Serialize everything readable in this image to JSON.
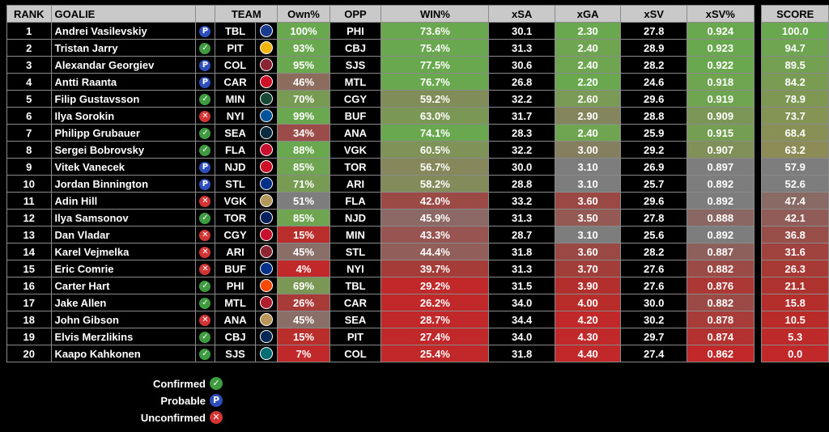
{
  "headers": {
    "rank": "RANK",
    "goalie": "GOALIE",
    "team": "TEAM",
    "own": "Own%",
    "opp": "OPP",
    "win": "WIN%",
    "xsa": "xSA",
    "xga": "xGA",
    "xsv": "xSV",
    "xsvpct": "xSV%",
    "score": "SCORE"
  },
  "status_glyphs": {
    "confirmed": "✓",
    "probable": "P",
    "unconfirmed": "✕"
  },
  "rows": [
    {
      "rank": "1",
      "goalie": "Andrei Vasilevskiy",
      "status": "probable",
      "team": "TBL",
      "logo_color": "#1a3c8f",
      "own": "100%",
      "own_color": "#6aa84f",
      "opp": "PHI",
      "win": "73.6%",
      "win_color": "#6aa84f",
      "xsa": "30.1",
      "xga": "2.30",
      "xga_color": "#6aa84f",
      "xsv": "27.8",
      "xsvpct": "0.924",
      "xsvpct_color": "#6aa84f",
      "score": "100.0",
      "score_color": "#6aa84f"
    },
    {
      "rank": "2",
      "goalie": "Tristan Jarry",
      "status": "confirmed",
      "team": "PIT",
      "logo_color": "#f2b50f",
      "own": "93%",
      "own_color": "#6aa84f",
      "opp": "CBJ",
      "win": "75.4%",
      "win_color": "#6aa84f",
      "xsa": "31.3",
      "xga": "2.40",
      "xga_color": "#6fa450",
      "xsv": "28.9",
      "xsvpct": "0.923",
      "xsvpct_color": "#6aa84f",
      "score": "94.7",
      "score_color": "#6fa450"
    },
    {
      "rank": "3",
      "goalie": "Alexandar Georgiev",
      "status": "probable",
      "team": "COL",
      "logo_color": "#8a2432",
      "own": "95%",
      "own_color": "#6aa84f",
      "opp": "SJS",
      "win": "77.5%",
      "win_color": "#6aa84f",
      "xsa": "30.6",
      "xga": "2.40",
      "xga_color": "#6fa450",
      "xsv": "28.2",
      "xsvpct": "0.922",
      "xsvpct_color": "#6aa84f",
      "score": "89.5",
      "score_color": "#74a051"
    },
    {
      "rank": "4",
      "goalie": "Antti Raanta",
      "status": "probable",
      "team": "CAR",
      "logo_color": "#ce1126",
      "own": "46%",
      "own_color": "#8c6c5c",
      "opp": "MTL",
      "win": "76.7%",
      "win_color": "#6aa84f",
      "xsa": "26.8",
      "xga": "2.20",
      "xga_color": "#6aa84f",
      "xsv": "24.6",
      "xsvpct": "0.918",
      "xsvpct_color": "#6fa450",
      "score": "84.2",
      "score_color": "#799c52"
    },
    {
      "rank": "5",
      "goalie": "Filip Gustavsson",
      "status": "confirmed",
      "team": "MIN",
      "logo_color": "#154734",
      "own": "70%",
      "own_color": "#779b53",
      "opp": "CGY",
      "win": "59.2%",
      "win_color": "#818d58",
      "xsa": "32.2",
      "xga": "2.60",
      "xga_color": "#799b55",
      "xsv": "29.6",
      "xsvpct": "0.919",
      "xsvpct_color": "#6fa450",
      "score": "78.9",
      "score_color": "#7e9854"
    },
    {
      "rank": "6",
      "goalie": "Ilya Sorokin",
      "status": "unconfirmed",
      "team": "NYI",
      "logo_color": "#00539b",
      "own": "99%",
      "own_color": "#6aa84f",
      "opp": "BUF",
      "win": "63.0%",
      "win_color": "#7b9755",
      "xsa": "31.7",
      "xga": "2.90",
      "xga_color": "#84855c",
      "xsv": "28.8",
      "xsvpct": "0.909",
      "xsvpct_color": "#7c9657",
      "score": "73.7",
      "score_color": "#839455"
    },
    {
      "rank": "7",
      "goalie": "Philipp Grubauer",
      "status": "confirmed",
      "team": "SEA",
      "logo_color": "#0b2a3d",
      "own": "34%",
      "own_color": "#9c4c48",
      "opp": "ANA",
      "win": "74.1%",
      "win_color": "#6aa84f",
      "xsa": "28.3",
      "xga": "2.40",
      "xga_color": "#6fa450",
      "xsv": "25.9",
      "xsvpct": "0.915",
      "xsvpct_color": "#749e52",
      "score": "68.4",
      "score_color": "#889056"
    },
    {
      "rank": "8",
      "goalie": "Sergei Bobrovsky",
      "status": "confirmed",
      "team": "FLA",
      "logo_color": "#c8102e",
      "own": "88%",
      "own_color": "#6aa84f",
      "opp": "VGK",
      "win": "60.5%",
      "win_color": "#7f9257",
      "xsa": "32.2",
      "xga": "3.00",
      "xga_color": "#857e5f",
      "xsv": "29.2",
      "xsvpct": "0.907",
      "xsvpct_color": "#818f59",
      "score": "63.2",
      "score_color": "#8d8c57"
    },
    {
      "rank": "9",
      "goalie": "Vitek Vanecek",
      "status": "probable",
      "team": "NJD",
      "logo_color": "#ce1126",
      "own": "85%",
      "own_color": "#6fa450",
      "opp": "TOR",
      "win": "56.7%",
      "win_color": "#86875b",
      "xsa": "30.0",
      "xga": "3.10",
      "xga_color": "#7d7d7d",
      "xsv": "26.9",
      "xsvpct": "0.897",
      "xsvpct_color": "#7d7d7d",
      "score": "57.9",
      "score_color": "#7d7d7d"
    },
    {
      "rank": "10",
      "goalie": "Jordan Binnington",
      "status": "probable",
      "team": "STL",
      "logo_color": "#002f87",
      "own": "71%",
      "own_color": "#779b53",
      "opp": "ARI",
      "win": "58.2%",
      "win_color": "#828b59",
      "xsa": "28.8",
      "xga": "3.10",
      "xga_color": "#7d7d7d",
      "xsv": "25.7",
      "xsvpct": "0.892",
      "xsvpct_color": "#7d7d7d",
      "score": "52.6",
      "score_color": "#7d7d7d"
    },
    {
      "rank": "11",
      "goalie": "Adin Hill",
      "status": "unconfirmed",
      "team": "VGK",
      "logo_color": "#b4975a",
      "own": "51%",
      "own_color": "#7d7d7d",
      "opp": "FLA",
      "win": "42.0%",
      "win_color": "#9c4a46",
      "xsa": "33.2",
      "xga": "3.60",
      "xga_color": "#9a4844",
      "xsv": "29.6",
      "xsvpct": "0.892",
      "xsvpct_color": "#7d7d7d",
      "score": "47.4",
      "score_color": "#8a6a65"
    },
    {
      "rank": "12",
      "goalie": "Ilya Samsonov",
      "status": "confirmed",
      "team": "TOR",
      "logo_color": "#00205b",
      "own": "85%",
      "own_color": "#6fa450",
      "opp": "NJD",
      "win": "45.9%",
      "win_color": "#8c6964",
      "xsa": "31.3",
      "xga": "3.50",
      "xga_color": "#935952",
      "xsv": "27.8",
      "xsvpct": "0.888",
      "xsvpct_color": "#8a6762",
      "score": "42.1",
      "score_color": "#915c57"
    },
    {
      "rank": "13",
      "goalie": "Dan Vladar",
      "status": "unconfirmed",
      "team": "CGY",
      "logo_color": "#c8102e",
      "own": "15%",
      "own_color": "#b92e2a",
      "opp": "MIN",
      "win": "43.3%",
      "win_color": "#975450",
      "xsa": "28.7",
      "xga": "3.10",
      "xga_color": "#7d7d7d",
      "xsv": "25.6",
      "xsvpct": "0.892",
      "xsvpct_color": "#7d7d7d",
      "score": "36.8",
      "score_color": "#984f4a"
    },
    {
      "rank": "14",
      "goalie": "Karel Vejmelka",
      "status": "unconfirmed",
      "team": "ARI",
      "logo_color": "#8c2633",
      "own": "45%",
      "own_color": "#8a6e68",
      "opp": "STL",
      "win": "44.4%",
      "win_color": "#925e59",
      "xsa": "31.8",
      "xga": "3.60",
      "xga_color": "#9a4844",
      "xsv": "28.2",
      "xsvpct": "0.887",
      "xsvpct_color": "#8e605b",
      "score": "31.6",
      "score_color": "#a0433e"
    },
    {
      "rank": "15",
      "goalie": "Eric Comrie",
      "status": "unconfirmed",
      "team": "BUF",
      "logo_color": "#003087",
      "own": "4%",
      "own_color": "#c0282a",
      "opp": "NYI",
      "win": "39.7%",
      "win_color": "#a63c38",
      "xsa": "31.3",
      "xga": "3.70",
      "xga_color": "#a23e3a",
      "xsv": "27.6",
      "xsvpct": "0.882",
      "xsvpct_color": "#9c4a45",
      "score": "26.3",
      "score_color": "#a73a35"
    },
    {
      "rank": "16",
      "goalie": "Carter Hart",
      "status": "confirmed",
      "team": "PHI",
      "logo_color": "#f74902",
      "own": "69%",
      "own_color": "#7a9854",
      "opp": "TBL",
      "win": "29.2%",
      "win_color": "#c0282a",
      "xsa": "31.5",
      "xga": "3.90",
      "xga_color": "#b22f2d",
      "xsv": "27.6",
      "xsvpct": "0.876",
      "xsvpct_color": "#ab3834",
      "score": "21.1",
      "score_color": "#ae332f"
    },
    {
      "rank": "17",
      "goalie": "Jake Allen",
      "status": "confirmed",
      "team": "MTL",
      "logo_color": "#af1e2d",
      "own": "26%",
      "own_color": "#a83b37",
      "opp": "CAR",
      "win": "26.2%",
      "win_color": "#c0282a",
      "xsa": "34.0",
      "xga": "4.00",
      "xga_color": "#b82c2a",
      "xsv": "30.0",
      "xsvpct": "0.882",
      "xsvpct_color": "#9c4a45",
      "score": "15.8",
      "score_color": "#b42e2b"
    },
    {
      "rank": "18",
      "goalie": "John Gibson",
      "status": "unconfirmed",
      "team": "ANA",
      "logo_color": "#b9975b",
      "own": "45%",
      "own_color": "#8a6e68",
      "opp": "SEA",
      "win": "28.7%",
      "win_color": "#c0282a",
      "xsa": "34.4",
      "xga": "4.20",
      "xga_color": "#c0282a",
      "xsv": "30.2",
      "xsvpct": "0.878",
      "xsvpct_color": "#a83c38",
      "score": "10.5",
      "score_color": "#b92b29"
    },
    {
      "rank": "19",
      "goalie": "Elvis Merzlikins",
      "status": "confirmed",
      "team": "CBJ",
      "logo_color": "#002654",
      "own": "15%",
      "own_color": "#b92e2a",
      "opp": "PIT",
      "win": "27.4%",
      "win_color": "#c0282a",
      "xsa": "34.0",
      "xga": "4.30",
      "xga_color": "#c0282a",
      "xsv": "29.7",
      "xsvpct": "0.874",
      "xsvpct_color": "#b3322f",
      "score": "5.3",
      "score_color": "#bd2a29"
    },
    {
      "rank": "20",
      "goalie": "Kaapo Kahkonen",
      "status": "confirmed",
      "team": "SJS",
      "logo_color": "#006d75",
      "own": "7%",
      "own_color": "#c0282a",
      "opp": "COL",
      "win": "25.4%",
      "win_color": "#c0282a",
      "xsa": "31.8",
      "xga": "4.40",
      "xga_color": "#c0282a",
      "xsv": "27.4",
      "xsvpct": "0.862",
      "xsvpct_color": "#c0282a",
      "score": "0.0",
      "score_color": "#c0282a"
    }
  ],
  "legend": [
    {
      "status": "confirmed",
      "label": "Confirmed"
    },
    {
      "status": "probable",
      "label": "Probable"
    },
    {
      "status": "unconfirmed",
      "label": "Unconfirmed"
    }
  ]
}
